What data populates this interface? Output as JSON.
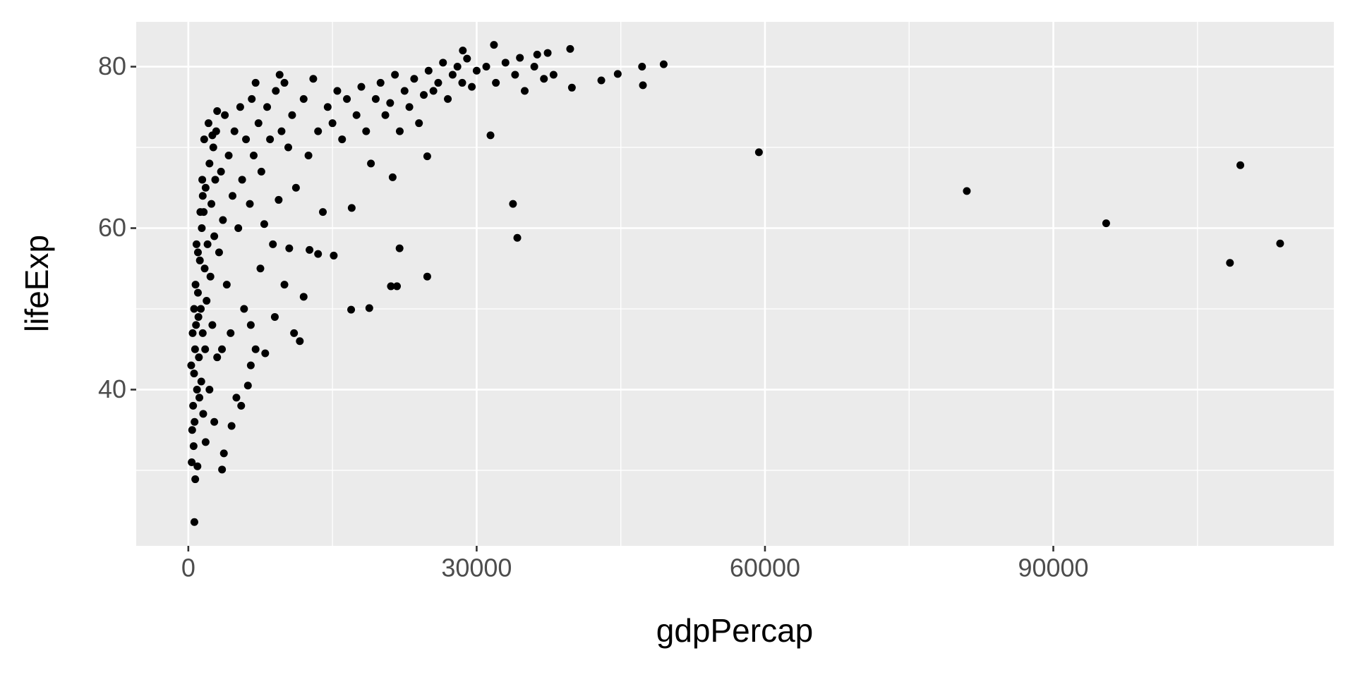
{
  "chart_data": {
    "type": "scatter",
    "x_label": "gdpPercap",
    "y_label": "lifeExp",
    "x": [
      113600,
      109460,
      108380,
      95500,
      81000,
      59370,
      49460,
      47210,
      47300,
      44680,
      42970,
      34230,
      33780,
      31440,
      24860,
      24860,
      21980,
      21710,
      21080,
      21260,
      18830,
      16940,
      15130,
      12610,
      630,
      720,
      3510,
      3700,
      31800,
      28560,
      39730,
      37390,
      36300,
      34500,
      39910,
      400,
      500,
      600,
      700,
      800,
      900,
      1000,
      1100,
      1200,
      1300,
      1400,
      1500,
      1600,
      1700,
      1800,
      2000,
      2200,
      2400,
      2600,
      2800,
      300,
      350,
      450,
      550,
      650,
      750,
      850,
      950,
      1050,
      1150,
      1250,
      1350,
      1450,
      1550,
      1650,
      1750,
      1900,
      2100,
      2300,
      2500,
      2700,
      2900,
      3000,
      3200,
      3400,
      3600,
      3800,
      4000,
      4200,
      4400,
      4600,
      4800,
      5000,
      5200,
      5400,
      5600,
      5800,
      6000,
      6200,
      6400,
      6600,
      6800,
      7000,
      7300,
      7600,
      7900,
      8200,
      8500,
      8800,
      9100,
      9400,
      9700,
      10000,
      10400,
      10800,
      11200,
      11600,
      12000,
      12500,
      13000,
      13500,
      14000,
      14500,
      15000,
      15500,
      16000,
      16500,
      17000,
      17500,
      18000,
      18500,
      19000,
      19500,
      20000,
      20500,
      21000,
      21500,
      22000,
      22500,
      23000,
      23500,
      24000,
      24500,
      25000,
      25500,
      26000,
      26500,
      27000,
      27500,
      28000,
      28500,
      29000,
      29500,
      30000,
      31000,
      32000,
      33000,
      34000,
      35000,
      36000,
      37000,
      38000,
      2700,
      4500,
      5500,
      6500,
      8000,
      9000,
      10000,
      11000,
      12000,
      10500,
      13500,
      7500,
      6500,
      3500,
      1800,
      2200,
      1000,
      600,
      1500,
      2500,
      3000,
      7000,
      9500
    ],
    "y": [
      58.1,
      67.8,
      55.7,
      60.6,
      64.6,
      69.4,
      80.3,
      80.0,
      77.7,
      79.1,
      78.3,
      58.8,
      63.0,
      71.5,
      68.9,
      54.0,
      57.5,
      52.8,
      52.8,
      66.3,
      50.1,
      49.9,
      56.6,
      57.3,
      23.6,
      28.9,
      30.1,
      32.1,
      82.7,
      82.0,
      82.2,
      81.7,
      81.5,
      81.1,
      77.4,
      35,
      38,
      42,
      45,
      48,
      40,
      52,
      44,
      56,
      50,
      60,
      47,
      62,
      55,
      65,
      58,
      68,
      63,
      70,
      66,
      43,
      31,
      47,
      33,
      36,
      53,
      58,
      30.5,
      49,
      39,
      62,
      41,
      66,
      37,
      71,
      45,
      51,
      73,
      54,
      48,
      59,
      72,
      44,
      57,
      67,
      61,
      74,
      53,
      69,
      47,
      64,
      72,
      39,
      60,
      75,
      66,
      50,
      71,
      40.5,
      63,
      76,
      69,
      45,
      73,
      67,
      60.5,
      75,
      71,
      58,
      77,
      63.5,
      72,
      78,
      70,
      74,
      65,
      46,
      76,
      69,
      78.5,
      72,
      62,
      75,
      73,
      77,
      71,
      76,
      62.5,
      74,
      77.5,
      72,
      68,
      76,
      78,
      74,
      75.5,
      79,
      72,
      77,
      75,
      78.5,
      73,
      76.5,
      79.5,
      77,
      78,
      80.5,
      76,
      79,
      80,
      78,
      81,
      77.5,
      79.5,
      80,
      78,
      80.5,
      79,
      77,
      80,
      78.5,
      79,
      36,
      35.5,
      38,
      43,
      44.5,
      49,
      53,
      47,
      51.5,
      57.5,
      56.8,
      55,
      48,
      45,
      33.5,
      40,
      57,
      50,
      64,
      71.5,
      74.5,
      78,
      79
    ],
    "color": "#000000",
    "xlim": [
      -5423,
      119187
    ],
    "ylim": [
      20.65,
      85.55
    ],
    "xticks": [
      0,
      30000,
      60000,
      90000
    ],
    "yticks": [
      40,
      60,
      80
    ],
    "x_minor_ticks": [
      15000,
      45000,
      75000,
      105000
    ],
    "y_minor_ticks": [
      30,
      50,
      70
    ],
    "grid": true,
    "panel_color": "#ebebeb"
  }
}
